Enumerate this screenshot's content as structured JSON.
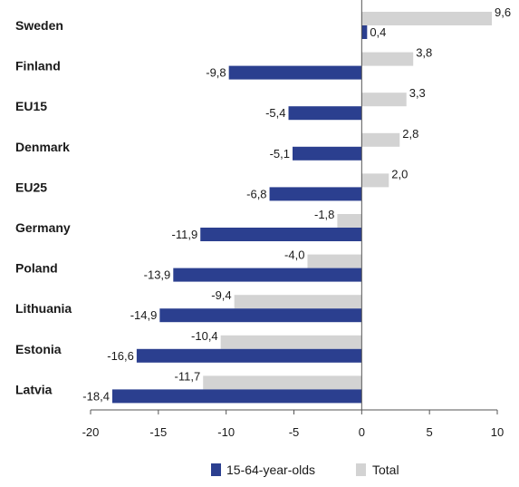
{
  "chart_data": {
    "type": "bar",
    "orientation": "horizontal",
    "title": "",
    "xlabel": "",
    "ylabel": "",
    "xlim": [
      -20,
      10
    ],
    "xticks": [
      -20,
      -15,
      -10,
      -5,
      0,
      5,
      10
    ],
    "grid": false,
    "legend_position": "bottom",
    "categories": [
      "Sweden",
      "Finland",
      "EU15",
      "Denmark",
      "EU25",
      "Germany",
      "Poland",
      "Lithuania",
      "Estonia",
      "Latvia"
    ],
    "series": [
      {
        "name": "15-64-year-olds",
        "color": "#2b3f8f",
        "values": [
          0.4,
          -9.8,
          -5.4,
          -5.1,
          -6.8,
          -11.9,
          -13.9,
          -14.9,
          -16.6,
          -18.4
        ],
        "labels": [
          "0,4",
          "-9,8",
          "-5,4",
          "-5,1",
          "-6,8",
          "-11,9",
          "-13,9",
          "-14,9",
          "-16,6",
          "-18,4"
        ]
      },
      {
        "name": "Total",
        "color": "#d3d3d3",
        "values": [
          9.6,
          3.8,
          3.3,
          2.8,
          2.0,
          -1.8,
          -4.0,
          -9.4,
          -10.4,
          -11.7
        ],
        "labels": [
          "9,6",
          "3,8",
          "3,3",
          "2,8",
          "2,0",
          "-1,8",
          "-4,0",
          "-9,4",
          "-10,4",
          "-11,7"
        ]
      }
    ]
  }
}
